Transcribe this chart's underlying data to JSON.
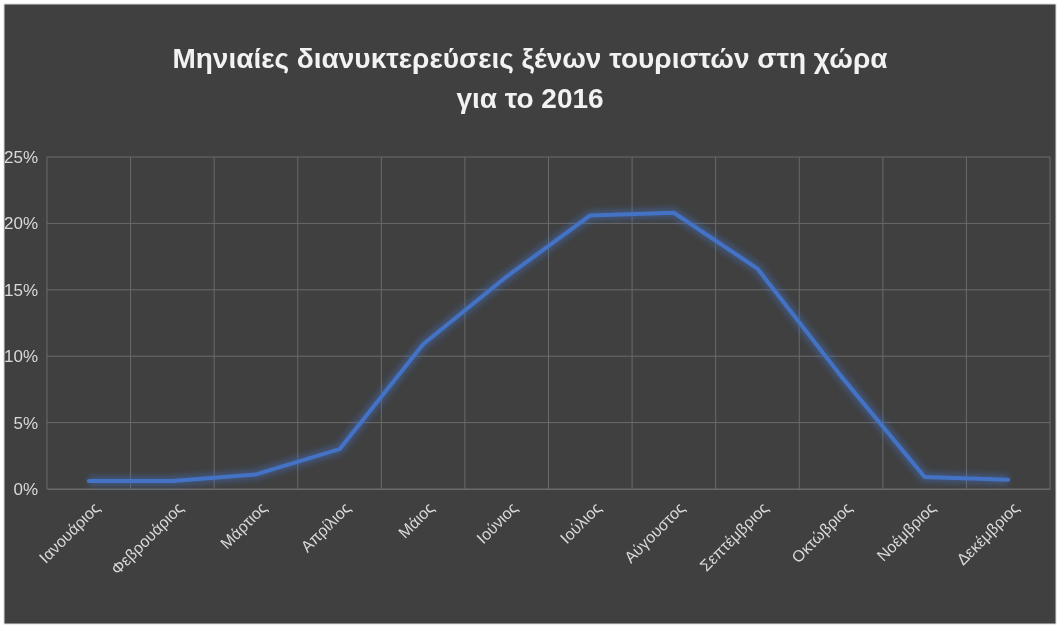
{
  "chart_data": {
    "type": "line",
    "title": "Μηνιαίες διανυκτερεύσεις ξένων τουριστών στη χώρα για το 2016",
    "categories": [
      "Ιανουάριος",
      "Φεβρουάριος",
      "Μάρτιος",
      "Απρίλιος",
      "Μάιος",
      "Ιούνιος",
      "Ιούλιος",
      "Αύγουστος",
      "Σεπτέμβριος",
      "Οκτώβριος",
      "Νοέμβριος",
      "Δεκέμβριος"
    ],
    "series": [
      {
        "color": "#4472c4",
        "values": [
          0.6,
          0.6,
          1.1,
          3.0,
          10.9,
          16.0,
          20.6,
          20.8,
          16.6,
          8.5,
          0.9,
          0.7
        ]
      }
    ],
    "ylim": [
      0,
      25
    ],
    "yticks": [
      {
        "value": 0,
        "label": "0%"
      },
      {
        "value": 5,
        "label": "5%"
      },
      {
        "value": 10,
        "label": "10%"
      },
      {
        "value": 15,
        "label": "15%"
      },
      {
        "value": 20,
        "label": "20%"
      },
      {
        "value": 25,
        "label": "25%"
      }
    ],
    "grid": true,
    "marker": "none",
    "line_style": "solid"
  }
}
